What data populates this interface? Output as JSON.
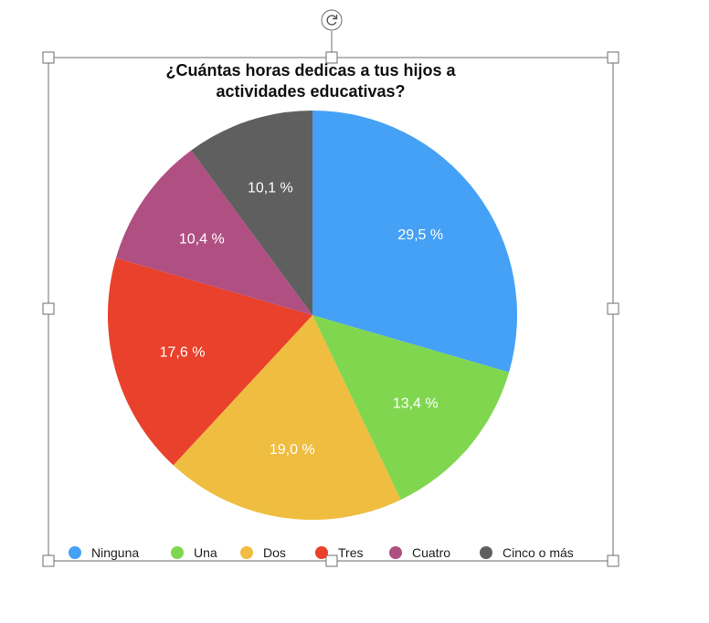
{
  "chart_data": {
    "type": "pie",
    "title_lines": [
      "¿Cuántas horas dedicas a tus hijos a",
      "actividades educativas?"
    ],
    "slices": [
      {
        "name": "Ninguna",
        "value": 29.5,
        "label": "29,5 %",
        "color": "#45a1f6"
      },
      {
        "name": "Una",
        "value": 13.4,
        "label": "13,4 %",
        "color": "#80d74f"
      },
      {
        "name": "Dos",
        "value": 19.0,
        "label": "19,0 %",
        "color": "#efbd40"
      },
      {
        "name": "Tres",
        "value": 17.6,
        "label": "17,6 %",
        "color": "#e9412b"
      },
      {
        "name": "Cuatro",
        "value": 10.4,
        "label": "10,4 %",
        "color": "#b05082"
      },
      {
        "name": "Cinco o más",
        "value": 10.1,
        "label": "10,1 %",
        "color": "#5f5f5f"
      }
    ],
    "legend_position": "bottom"
  },
  "ui": {
    "rotate_icon": "rotate-icon",
    "selection_colors": {
      "frame": "#6e6e6e",
      "handle_fill": "#ffffff"
    }
  }
}
